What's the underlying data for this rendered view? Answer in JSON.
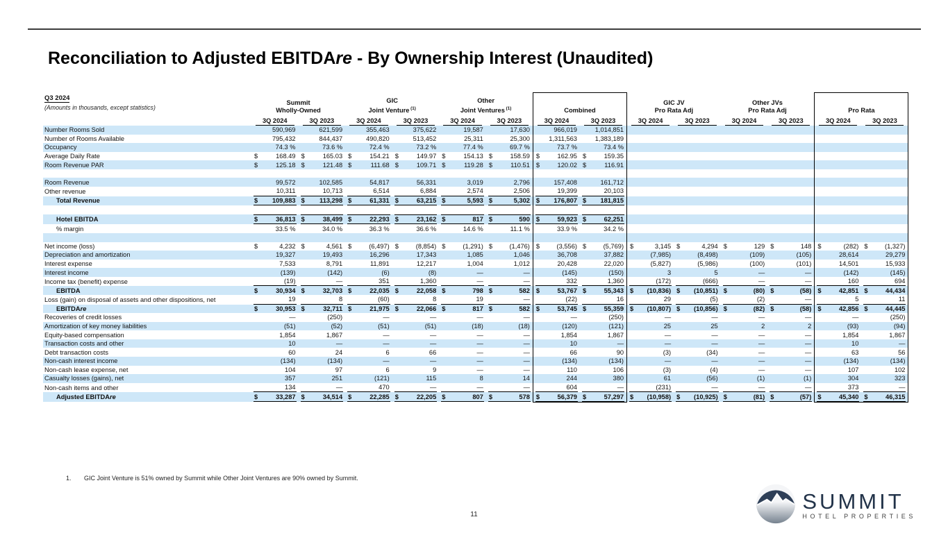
{
  "page": {
    "title_markup": "Reconciliation to Adjusted EBITDA*re* - By Ownership Interest (Unaudited)",
    "page_number": "11",
    "footnote_number": "1.",
    "footnote_text": "GIC Joint Venture is 51% owned by Summit while Other Joint Ventures are 90% owned by Summit.",
    "logo": {
      "name": "SUMMIT",
      "subtitle": "HOTEL PROPERTIES"
    }
  },
  "colors": {
    "stripe": "#cee7f8",
    "navy": "#2e3f57"
  },
  "table": {
    "corner": {
      "period_label": "Q3 2024",
      "note": "(Amounts in thousands, except statistics)"
    },
    "groups": [
      {
        "line1": "Summit",
        "line2": "Wholly-Owned",
        "sup": "",
        "boxed": false
      },
      {
        "line1": "GIC",
        "line2": "Joint Venture",
        "sup": "(1)",
        "boxed": false
      },
      {
        "line1": "Other",
        "line2": "Joint Ventures",
        "sup": "(1)",
        "boxed": false
      },
      {
        "line1": "",
        "line2": "Combined",
        "sup": "",
        "boxed": true
      },
      {
        "line1": "GIC JV",
        "line2": "Pro Rata Adj",
        "sup": "",
        "boxed": false
      },
      {
        "line1": "Other JVs",
        "line2": "Pro Rata Adj",
        "sup": "",
        "boxed": false
      },
      {
        "line1": "",
        "line2": "Pro Rata",
        "sup": "",
        "boxed": true
      }
    ],
    "period_labels": [
      "3Q 2024",
      "3Q 2023"
    ],
    "rows": [
      {
        "label": "Number Rooms Sold",
        "cells": [
          "590,969",
          "621,599",
          "355,463",
          "375,622",
          "19,587",
          "17,630",
          "966,019",
          "1,014,851",
          "",
          "",
          "",
          "",
          "",
          ""
        ]
      },
      {
        "label": "Number of Rooms Available",
        "cells": [
          "795,432",
          "844,437",
          "490,820",
          "513,452",
          "25,311",
          "25,300",
          "1,311,563",
          "1,383,189",
          "",
          "",
          "",
          "",
          "",
          ""
        ]
      },
      {
        "label": "Occupancy",
        "cells": [
          "74.3 %",
          "73.6 %",
          "72.4 %",
          "73.2 %",
          "77.4 %",
          "69.7 %",
          "73.7 %",
          "73.4 %",
          "",
          "",
          "",
          "",
          "",
          ""
        ]
      },
      {
        "label": "Average Daily Rate",
        "cells": [
          "$ 168.49",
          "$ 165.03",
          "$ 154.21",
          "$ 149.97",
          "$ 154.13",
          "$ 158.59",
          "$ 162.95",
          "$ 159.35",
          "",
          "",
          "",
          "",
          "",
          ""
        ]
      },
      {
        "label": "Room Revenue PAR",
        "cells": [
          "$ 125.18",
          "$ 121.48",
          "$ 111.68",
          "$ 109.71",
          "$ 119.28",
          "$ 110.51",
          "$ 120.02",
          "$ 116.91",
          "",
          "",
          "",
          "",
          "",
          ""
        ]
      },
      {
        "blank": true
      },
      {
        "label": "Room Revenue",
        "cells": [
          "99,572",
          "102,585",
          "54,817",
          "56,331",
          "3,019",
          "2,796",
          "157,408",
          "161,712",
          "",
          "",
          "",
          "",
          "",
          ""
        ]
      },
      {
        "label": "Other revenue",
        "rule": "bottom",
        "rule_span": 8,
        "cells": [
          "10,311",
          "10,713",
          "6,514",
          "6,884",
          "2,574",
          "2,506",
          "19,399",
          "20,103",
          "",
          "",
          "",
          "",
          "",
          ""
        ]
      },
      {
        "label": "Total Revenue",
        "bold": true,
        "indent": true,
        "rule": "bottom",
        "rule_span": 8,
        "cells": [
          "$ 109,883",
          "$ 113,298",
          "$ 61,331",
          "$ 63,215",
          "$ 5,593",
          "$ 5,302",
          "$ 176,807",
          "$ 181,815",
          "",
          "",
          "",
          "",
          "",
          ""
        ]
      },
      {
        "blank": true
      },
      {
        "label": "Hotel EBITDA",
        "bold": true,
        "indent": true,
        "rule": "topbottom",
        "rule_span": 8,
        "cells": [
          "$ 36,813",
          "$ 38,499",
          "$ 22,293",
          "$ 23,162",
          "$ 817",
          "$ 590",
          "$ 59,923",
          "$ 62,251",
          "",
          "",
          "",
          "",
          "",
          ""
        ]
      },
      {
        "label": "% margin",
        "indent": true,
        "cells": [
          "33.5 %",
          "34.0 %",
          "36.3 %",
          "36.6 %",
          "14.6 %",
          "11.1 %",
          "33.9 %",
          "34.2 %",
          "",
          "",
          "",
          "",
          "",
          ""
        ]
      },
      {
        "blank": true
      },
      {
        "label": "Net income (loss)",
        "cells": [
          "$ 4,232",
          "$ 4,561",
          "$ (6,497)",
          "$ (8,854)",
          "$ (1,291)",
          "$ (1,476)",
          "$ (3,556)",
          "$ (5,769)",
          "$ 3,145",
          "$ 4,294",
          "$ 129",
          "$ 148",
          "$ (282)",
          "$ (1,327)"
        ]
      },
      {
        "label": "Depreciation and amortization",
        "cells": [
          "19,327",
          "19,493",
          "16,296",
          "17,343",
          "1,085",
          "1,046",
          "36,708",
          "37,882",
          "(7,985)",
          "(8,498)",
          "(109)",
          "(105)",
          "28,614",
          "29,279"
        ]
      },
      {
        "label": "Interest expense",
        "cells": [
          "7,533",
          "8,791",
          "11,891",
          "12,217",
          "1,004",
          "1,012",
          "20,428",
          "22,020",
          "(5,827)",
          "(5,986)",
          "(100)",
          "(101)",
          "14,501",
          "15,933"
        ]
      },
      {
        "label": "Interest income",
        "cells": [
          "(139)",
          "(142)",
          "(6)",
          "(8)",
          "—",
          "—",
          "(145)",
          "(150)",
          "3",
          "5",
          "—",
          "—",
          "(142)",
          "(145)"
        ]
      },
      {
        "label": "Income tax (benefit) expense",
        "rule": "bottom",
        "rule_span": 14,
        "cells": [
          "(19)",
          "—",
          "351",
          "1,360",
          "—",
          "—",
          "332",
          "1,360",
          "(172)",
          "(666)",
          "—",
          "—",
          "160",
          "694"
        ]
      },
      {
        "label": "EBITDA",
        "bold": true,
        "indent": true,
        "cells": [
          "$ 30,934",
          "$ 32,703",
          "$ 22,035",
          "$ 22,058",
          "$ 798",
          "$ 582",
          "$ 53,767",
          "$ 55,343",
          "$ (10,836)",
          "$ (10,851)",
          "$ (80)",
          "$ (58)",
          "$ 42,851",
          "$ 44,434"
        ]
      },
      {
        "label": "Loss (gain) on disposal of assets and other dispositions, net",
        "rule": "bottom",
        "rule_span": 14,
        "cells": [
          "19",
          "8",
          "(60)",
          "8",
          "19",
          "—",
          "(22)",
          "16",
          "29",
          "(5)",
          "(2)",
          "—",
          "5",
          "11"
        ]
      },
      {
        "label": "EBITDA*re*",
        "bold": true,
        "indent": true,
        "cells": [
          "$ 30,953",
          "$ 32,711",
          "$ 21,975",
          "$ 22,066",
          "$ 817",
          "$ 582",
          "$ 53,745",
          "$ 55,359",
          "$ (10,807)",
          "$ (10,856)",
          "$ (82)",
          "$ (58)",
          "$ 42,856",
          "$ 44,445"
        ]
      },
      {
        "label": "Recoveries of credit losses",
        "cells": [
          "—",
          "(250)",
          "—",
          "—",
          "—",
          "—",
          "—",
          "(250)",
          "—",
          "—",
          "—",
          "—",
          "—",
          "(250)"
        ]
      },
      {
        "label": "Amortization of key money liabilities",
        "cells": [
          "(51)",
          "(52)",
          "(51)",
          "(51)",
          "(18)",
          "(18)",
          "(120)",
          "(121)",
          "25",
          "25",
          "2",
          "2",
          "(93)",
          "(94)"
        ]
      },
      {
        "label": "Equity-based compensation",
        "cells": [
          "1,854",
          "1,867",
          "—",
          "—",
          "—",
          "—",
          "1,854",
          "1,867",
          "—",
          "—",
          "—",
          "—",
          "1,854",
          "1,867"
        ]
      },
      {
        "label": "Transaction costs and other",
        "cells": [
          "10",
          "—",
          "—",
          "—",
          "—",
          "—",
          "10",
          "—",
          "—",
          "—",
          "—",
          "—",
          "10",
          "—"
        ]
      },
      {
        "label": "Debt transaction costs",
        "cells": [
          "60",
          "24",
          "6",
          "66",
          "—",
          "—",
          "66",
          "90",
          "(3)",
          "(34)",
          "—",
          "—",
          "63",
          "56"
        ]
      },
      {
        "label": "Non-cash interest income",
        "cells": [
          "(134)",
          "(134)",
          "—",
          "—",
          "—",
          "—",
          "(134)",
          "(134)",
          "—",
          "—",
          "—",
          "—",
          "(134)",
          "(134)"
        ]
      },
      {
        "label": "Non-cash lease expense, net",
        "cells": [
          "104",
          "97",
          "6",
          "9",
          "—",
          "—",
          "110",
          "106",
          "(3)",
          "(4)",
          "—",
          "—",
          "107",
          "102"
        ]
      },
      {
        "label": "Casualty losses (gains), net",
        "cells": [
          "357",
          "251",
          "(121)",
          "115",
          "8",
          "14",
          "244",
          "380",
          "61",
          "(56)",
          "(1)",
          "(1)",
          "304",
          "323"
        ]
      },
      {
        "label": "Non-cash items and other",
        "rule": "bottom",
        "rule_span": 14,
        "cells": [
          "134",
          "—",
          "470",
          "—",
          "—",
          "—",
          "604",
          "—",
          "(231)",
          "—",
          "—",
          "—",
          "373",
          "—"
        ]
      },
      {
        "label": "Adjusted EBITDA*re*",
        "bold": true,
        "indent": true,
        "rule": "bottom",
        "rule_span": 14,
        "cells": [
          "$ 33,287",
          "$ 34,514",
          "$ 22,285",
          "$ 22,205",
          "$ 807",
          "$ 578",
          "$ 56,379",
          "$ 57,297",
          "$ (10,958)",
          "$ (10,925)",
          "$ (81)",
          "$ (57)",
          "$ 45,340",
          "$ 46,315"
        ]
      }
    ]
  }
}
